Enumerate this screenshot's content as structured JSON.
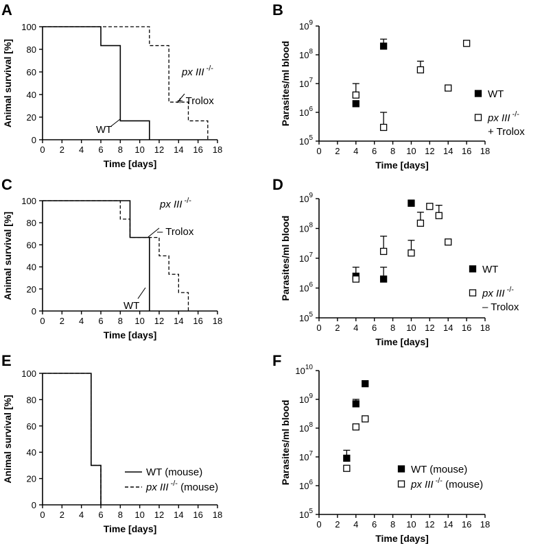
{
  "panels": [
    {
      "letter": "A",
      "chart_data": {
        "type": "line",
        "subtype": "survival-step",
        "xlabel": "Time [days]",
        "ylabel": "Animal survival [%]",
        "xlim": [
          0,
          18
        ],
        "ylim": [
          0,
          100
        ],
        "xticks": [
          0,
          2,
          4,
          6,
          8,
          10,
          12,
          14,
          16,
          18
        ],
        "yticks": [
          0,
          20,
          40,
          60,
          80,
          100
        ],
        "series": [
          {
            "name": "WT",
            "style": "solid",
            "x": [
              0,
              6,
              8,
              11
            ],
            "y": [
              100,
              83.3,
              16.7,
              0
            ]
          },
          {
            "name": "px III -/- + Trolox",
            "style": "dashed",
            "x": [
              0,
              8,
              11,
              13,
              15,
              17
            ],
            "y": [
              100,
              100,
              83.3,
              33.3,
              16.7,
              0
            ]
          }
        ],
        "annotations": [
          {
            "text": "WT",
            "series": "WT"
          },
          {
            "text": "px III",
            "sup": "-/-",
            "line2": "+ Trolox",
            "series": "px III -/- + Trolox"
          }
        ]
      }
    },
    {
      "letter": "B",
      "chart_data": {
        "type": "scatter",
        "xlabel": "Time [days]",
        "ylabel": "Parasites/ml blood",
        "yscale": "log",
        "xlim": [
          0,
          18
        ],
        "ylim_exp": [
          5,
          9
        ],
        "xticks": [
          0,
          2,
          4,
          6,
          8,
          10,
          12,
          14,
          16,
          18
        ],
        "yticks_base": "10",
        "yticks_exp": [
          "5",
          "6",
          "7",
          "8",
          "9"
        ],
        "series": [
          {
            "name": "WT",
            "marker": "filled-square",
            "x": [
              4,
              7
            ],
            "y": [
              2000000,
              200000000
            ],
            "err_upper": [
              null,
              350000000
            ]
          },
          {
            "name": "px III -/- + Trolox",
            "marker": "open-square",
            "x": [
              4,
              7,
              11,
              14,
              16
            ],
            "y": [
              4000000,
              300000,
              30000000,
              7000000,
              250000000
            ],
            "err_upper": [
              10000000,
              1000000,
              60000000,
              null,
              null
            ]
          }
        ],
        "legend": {
          "position": "right",
          "entries": [
            {
              "text": "WT",
              "marker": "filled-square"
            },
            {
              "text": "px III",
              "sup": "-/-",
              "line2": "+ Trolox",
              "marker": "open-square"
            }
          ]
        }
      }
    },
    {
      "letter": "C",
      "chart_data": {
        "type": "line",
        "subtype": "survival-step",
        "xlabel": "Time [days]",
        "ylabel": "Animal survival [%]",
        "xlim": [
          0,
          18
        ],
        "ylim": [
          0,
          100
        ],
        "xticks": [
          0,
          2,
          4,
          6,
          8,
          10,
          12,
          14,
          16,
          18
        ],
        "yticks": [
          0,
          20,
          40,
          60,
          80,
          100
        ],
        "series": [
          {
            "name": "WT",
            "style": "solid",
            "x": [
              0,
              9,
              11
            ],
            "y": [
              100,
              66.7,
              0
            ]
          },
          {
            "name": "px III -/- - Trolox",
            "style": "dashed",
            "x": [
              0,
              8,
              9,
              12,
              13,
              14,
              15
            ],
            "y": [
              100,
              83.3,
              66.7,
              50,
              33.3,
              16.7,
              0
            ]
          }
        ],
        "annotations": [
          {
            "text": "WT",
            "series": "WT"
          },
          {
            "text": "px III",
            "sup": "-/-",
            "line2": "– Trolox",
            "series": "px III -/- - Trolox"
          }
        ]
      }
    },
    {
      "letter": "D",
      "chart_data": {
        "type": "scatter",
        "xlabel": "Time [days]",
        "ylabel": "Parasites/ml blood",
        "yscale": "log",
        "xlim": [
          0,
          18
        ],
        "ylim_exp": [
          5,
          9
        ],
        "xticks": [
          0,
          2,
          4,
          6,
          8,
          10,
          12,
          14,
          16,
          18
        ],
        "yticks_base": "10",
        "yticks_exp": [
          "5",
          "6",
          "7",
          "8",
          "9"
        ],
        "series": [
          {
            "name": "WT",
            "marker": "filled-square",
            "x": [
              4,
              7,
              10
            ],
            "y": [
              2500000,
              2000000,
              700000000
            ],
            "err_upper": [
              5000000,
              5000000,
              900000000
            ]
          },
          {
            "name": "px III -/- - Trolox",
            "marker": "open-square",
            "x": [
              4,
              7,
              10,
              11,
              12,
              13,
              14
            ],
            "y": [
              2000000,
              17000000,
              15000000,
              150000000,
              550000000,
              270000000,
              35000000
            ],
            "err_upper": [
              null,
              55000000,
              40000000,
              350000000,
              null,
              600000000,
              null
            ]
          }
        ],
        "legend": {
          "position": "right",
          "entries": [
            {
              "text": "WT",
              "marker": "filled-square"
            },
            {
              "text": "px III",
              "sup": "-/-",
              "line2": "– Trolox",
              "marker": "open-square"
            }
          ]
        }
      }
    },
    {
      "letter": "E",
      "chart_data": {
        "type": "line",
        "subtype": "survival-step",
        "xlabel": "Time [days]",
        "ylabel": "Animal survival [%]",
        "xlim": [
          0,
          18
        ],
        "ylim": [
          0,
          100
        ],
        "xticks": [
          0,
          2,
          4,
          6,
          8,
          10,
          12,
          14,
          16,
          18
        ],
        "yticks": [
          0,
          20,
          40,
          60,
          80,
          100
        ],
        "series": [
          {
            "name": "WT (mouse)",
            "style": "solid",
            "x": [
              0,
              5,
              6
            ],
            "y": [
              100,
              30,
              0
            ]
          },
          {
            "name": "px III -/- (mouse)",
            "style": "dashed",
            "x": [
              0,
              5,
              6
            ],
            "y": [
              100,
              30,
              0
            ]
          }
        ],
        "legend": {
          "position": "bottom-right",
          "entries": [
            {
              "text": "WT (mouse)",
              "style": "solid"
            },
            {
              "text": "px III",
              "sup": "-/-",
              "tail": " (mouse)",
              "style": "dashed"
            }
          ]
        }
      }
    },
    {
      "letter": "F",
      "chart_data": {
        "type": "scatter",
        "xlabel": "Time [days]",
        "ylabel": "Parasites/ml blood",
        "yscale": "log",
        "xlim": [
          0,
          18
        ],
        "ylim_exp": [
          5,
          10
        ],
        "xticks": [
          0,
          2,
          4,
          6,
          8,
          10,
          12,
          14,
          16,
          18
        ],
        "yticks_base": "10",
        "yticks_exp": [
          "5",
          "6",
          "7",
          "8",
          "9",
          "10"
        ],
        "series": [
          {
            "name": "WT (mouse)",
            "marker": "filled-square",
            "x": [
              3,
              4,
              5
            ],
            "y": [
              9000000,
              700000000,
              3500000000
            ],
            "err_upper": [
              17000000,
              1000000000,
              null
            ]
          },
          {
            "name": "px III -/- (mouse)",
            "marker": "open-square",
            "x": [
              3,
              4,
              5
            ],
            "y": [
              4000000,
              110000000,
              210000000
            ],
            "err_upper": [
              null,
              null,
              null
            ]
          }
        ],
        "legend": {
          "position": "bottom-right",
          "entries": [
            {
              "text": "WT (mouse)",
              "marker": "filled-square"
            },
            {
              "text": "px III",
              "sup": "-/-",
              "tail": " (mouse)",
              "marker": "open-square"
            }
          ]
        }
      }
    }
  ]
}
